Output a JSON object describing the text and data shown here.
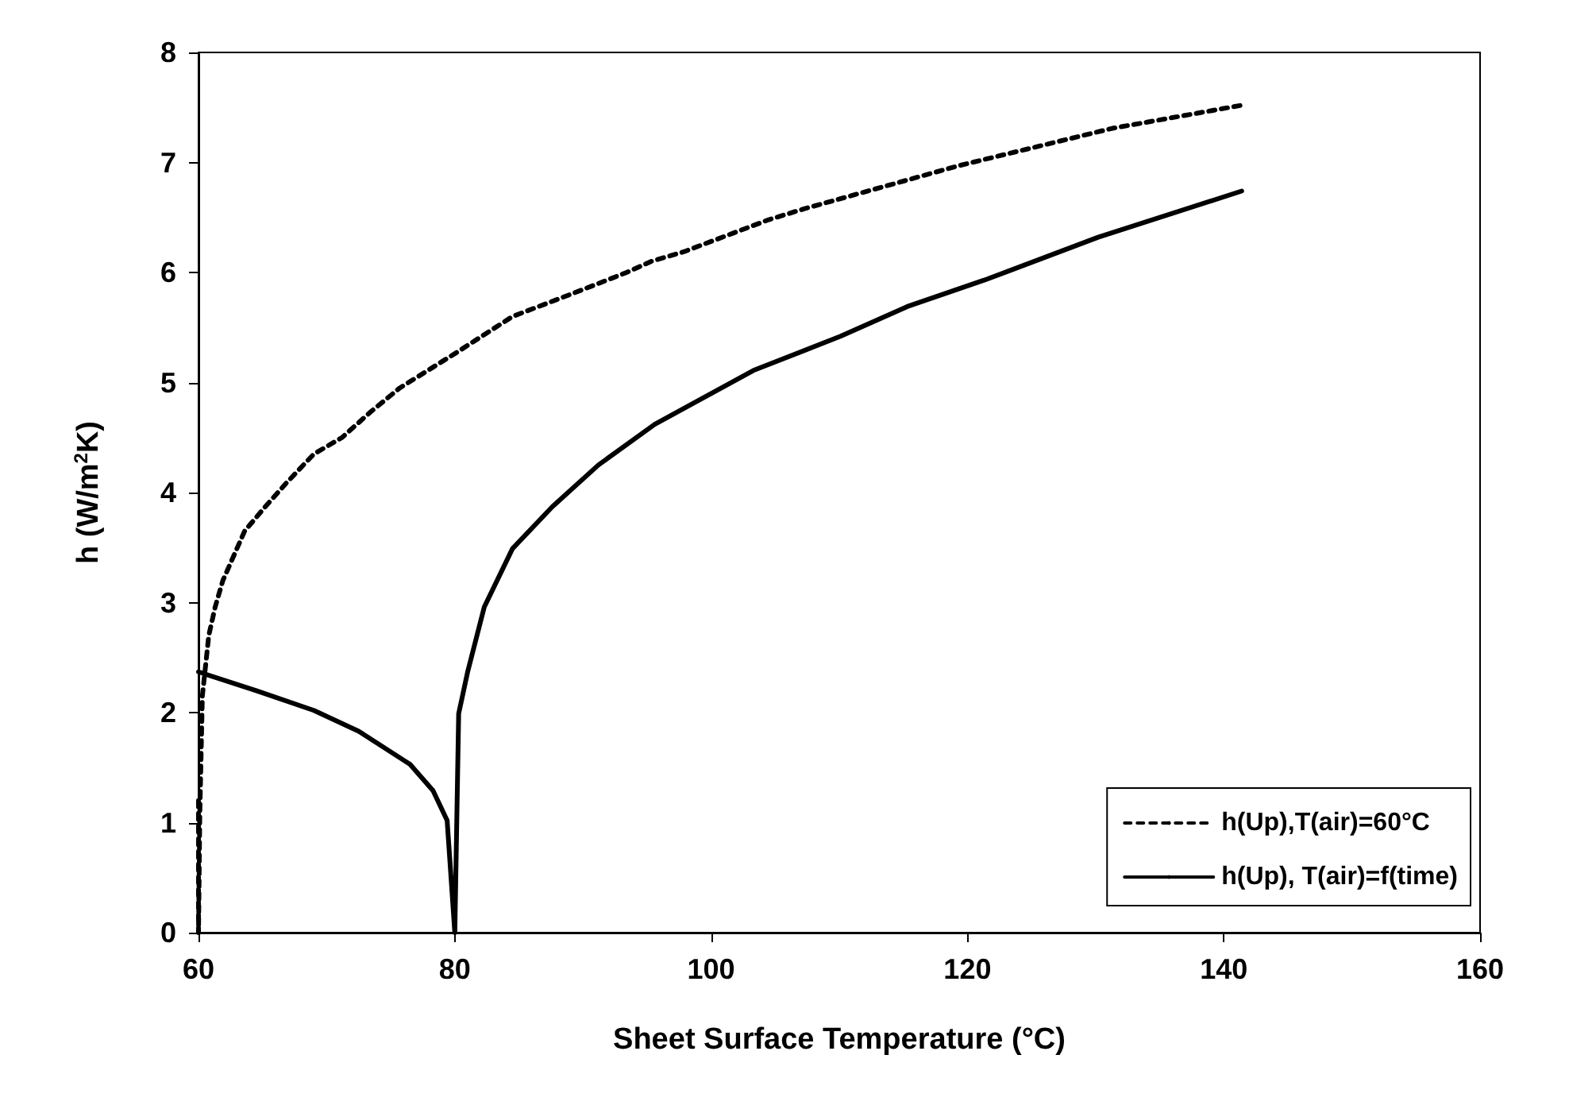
{
  "chart_data": {
    "type": "line",
    "xlabel": "Sheet Surface Temperature (°C)",
    "ylabel": "h (W/m$^{2}$K)",
    "xlim": [
      60,
      160
    ],
    "xticks": [
      60,
      80,
      100,
      120,
      140,
      160
    ],
    "ylim": [
      0,
      8
    ],
    "yticks": [
      0,
      1,
      2,
      3,
      4,
      5,
      6,
      7,
      8
    ],
    "grid": false,
    "legend": "bottom right",
    "marker": "none",
    "series": [
      {
        "name": "h(Up),T(air)=60°C",
        "color": "#000000",
        "line_style": "dotted",
        "x": [
          60,
          60,
          60.1,
          60.3,
          60.8,
          61.3,
          61.9,
          63.6,
          65.2,
          66.8,
          69,
          71.2,
          73.4,
          75.7,
          80.1,
          84.5,
          89,
          93.4,
          95.3,
          97.9,
          104.5,
          107.3,
          119.3,
          131.3,
          141.4
        ],
        "values": [
          1.2,
          0,
          1.07,
          2.15,
          2.7,
          2.96,
          3.2,
          3.65,
          3.87,
          4.08,
          4.35,
          4.5,
          4.73,
          4.95,
          5.27,
          5.6,
          5.8,
          6.0,
          6.1,
          6.19,
          6.48,
          6.58,
          6.97,
          7.31,
          7.52
        ]
      },
      {
        "name": "h(Up), T(air)=f(time)",
        "color": "#000000",
        "line_style": "solid",
        "x": [
          60,
          64.5,
          69,
          72.5,
          76.5,
          78.3,
          79.4,
          80,
          80.3,
          81,
          82.3,
          84.5,
          87.6,
          91.2,
          95.6,
          103.3,
          110.1,
          115.3,
          121.3,
          130.2,
          141.4
        ],
        "values": [
          2.37,
          2.2,
          2.02,
          1.83,
          1.53,
          1.29,
          1.02,
          0,
          1.99,
          2.37,
          2.96,
          3.49,
          3.87,
          4.25,
          4.62,
          5.11,
          5.42,
          5.69,
          5.93,
          6.32,
          6.74
        ]
      }
    ]
  }
}
